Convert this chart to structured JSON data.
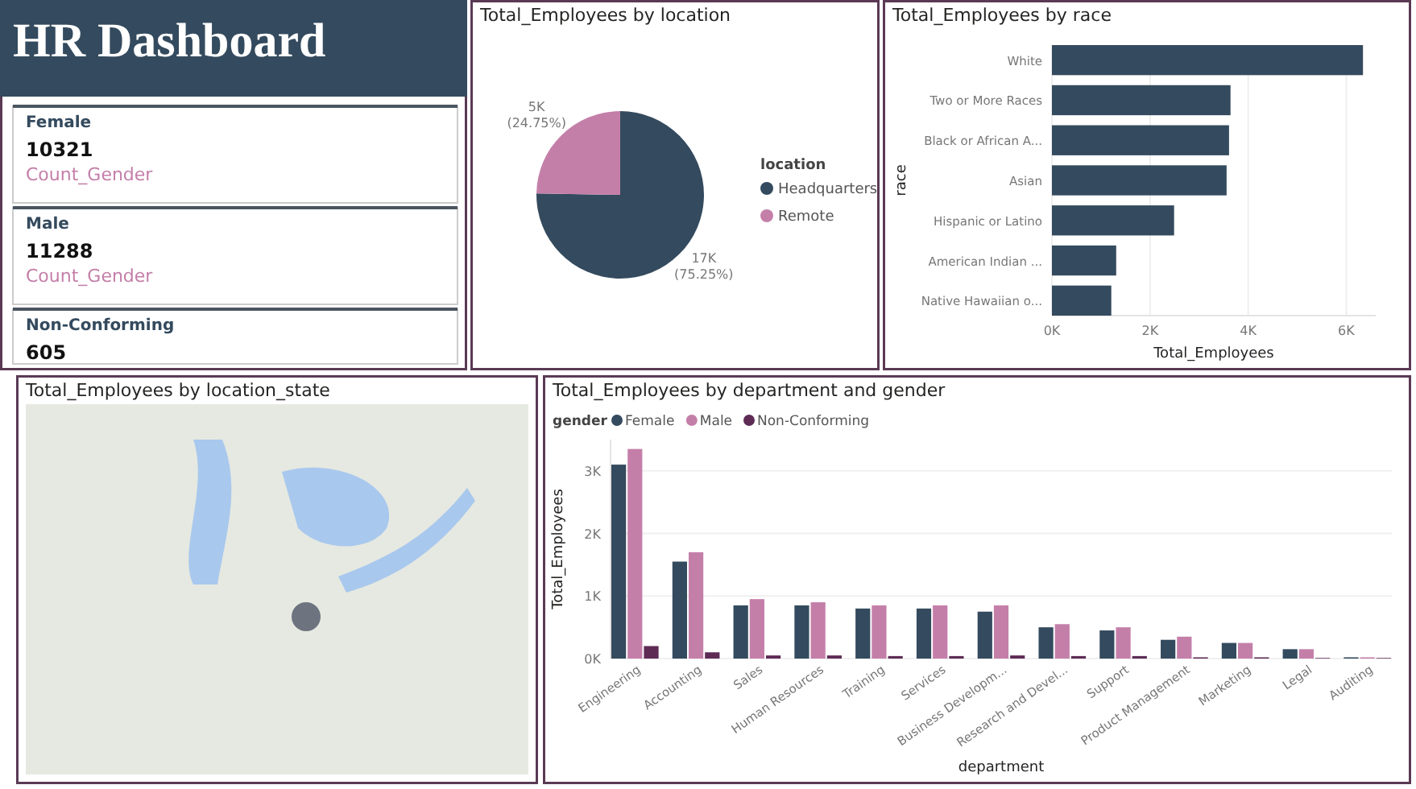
{
  "chart_data": [
    {
      "type": "other",
      "title": "HR Dashboard",
      "categories": [
        "Female",
        "Male",
        "Non-Conforming"
      ],
      "values": [
        10321,
        11288,
        605
      ],
      "data_labels": true,
      "annotations": [
        "Count_Gender",
        "Count_Gender"
      ]
    },
    {
      "type": "pie",
      "title": "Total_Employees by location",
      "categories": [
        "Headquarters",
        "Remote"
      ],
      "values": [
        75.25,
        24.75
      ],
      "colors": [
        "#344a5e",
        "#c47fa9"
      ],
      "value_labels": [
        "17K (75.25%)",
        "5K (24.75%)"
      ],
      "legend_title": "location",
      "legend": "right"
    },
    {
      "type": "bar",
      "orientation": "horizontal",
      "title": "Total_Employees by race",
      "xlabel": "Total_Employees",
      "ylabel": "race",
      "categories": [
        "White",
        "Two or More Races",
        "Black or African A...",
        "Asian",
        "Hispanic or Latino",
        "American Indian ...",
        "Native Hawaiian o..."
      ],
      "values": [
        6340,
        3640,
        3610,
        3560,
        2490,
        1310,
        1210
      ],
      "color": "#344a5e",
      "xlim": [
        0,
        6600
      ],
      "xticks": [
        {
          "value": 0,
          "label": "0K"
        },
        {
          "value": 2000,
          "label": "2K"
        },
        {
          "value": 4000,
          "label": "4K"
        },
        {
          "value": 6000,
          "label": "6K"
        }
      ],
      "grid": "x"
    },
    {
      "type": "other",
      "title": "Total_Employees by location_state"
    },
    {
      "type": "bar",
      "title": "Total_Employees by department and gender",
      "xlabel": "department",
      "ylabel": "Total_Employees",
      "legend_title": "gender",
      "legend": "top left",
      "grid": "y",
      "categories": [
        "Engineering",
        "Accounting",
        "Sales",
        "Human Resources",
        "Training",
        "Services",
        "Business Developm...",
        "Research and Devel...",
        "Support",
        "Product Management",
        "Marketing",
        "Legal",
        "Auditing"
      ],
      "ylim": [
        0,
        3500
      ],
      "yticks": [
        {
          "value": 0,
          "label": "0K"
        },
        {
          "value": 1000,
          "label": "1K"
        },
        {
          "value": 2000,
          "label": "2K"
        },
        {
          "value": 3000,
          "label": "3K"
        }
      ],
      "series": [
        {
          "name": "Female",
          "color": "#344a5e",
          "values": [
            3100,
            1550,
            850,
            850,
            800,
            800,
            750,
            500,
            450,
            300,
            250,
            150,
            20
          ]
        },
        {
          "name": "Male",
          "color": "#c47fa9",
          "values": [
            3350,
            1700,
            950,
            900,
            850,
            850,
            850,
            550,
            500,
            350,
            250,
            150,
            20
          ]
        },
        {
          "name": "Non-Conforming",
          "color": "#5e2b55",
          "values": [
            200,
            100,
            50,
            50,
            40,
            40,
            50,
            40,
            40,
            20,
            20,
            10,
            10
          ]
        }
      ]
    }
  ]
}
